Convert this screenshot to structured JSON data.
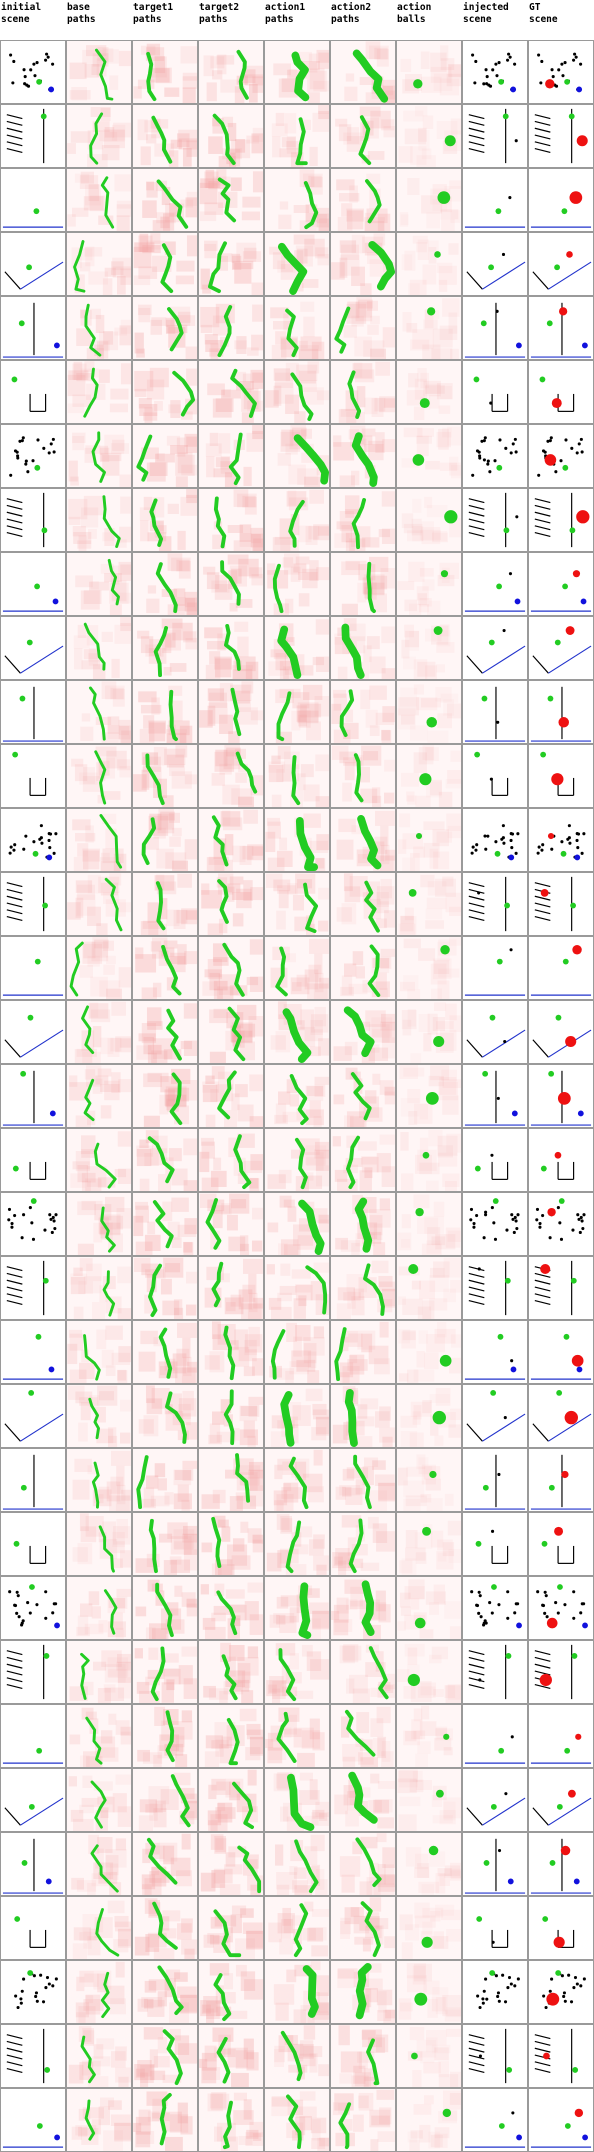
{
  "columns": [
    {
      "line1": "initial",
      "line2": "scene",
      "kind": "scene"
    },
    {
      "line1": "base",
      "line2": "paths",
      "kind": "base"
    },
    {
      "line1": "target1",
      "line2": "paths",
      "kind": "target"
    },
    {
      "line1": "target2",
      "line2": "paths",
      "kind": "target"
    },
    {
      "line1": "action1",
      "line2": "paths",
      "kind": "action"
    },
    {
      "line1": "action2",
      "line2": "paths",
      "kind": "action"
    },
    {
      "line1": "action",
      "line2": "balls",
      "kind": "balls"
    },
    {
      "line1": "injected",
      "line2": "scene",
      "kind": "injected"
    },
    {
      "line1": "GT",
      "line2": "scene",
      "kind": "gt"
    }
  ],
  "row_count": 33,
  "colors": {
    "path_green": "#22cc22",
    "heat_red": "#f2a6a6",
    "ball_red": "#ee1111",
    "ball_blue": "#1111dd",
    "wall_blue": "#2233cc",
    "border": "#9a9a9a"
  }
}
